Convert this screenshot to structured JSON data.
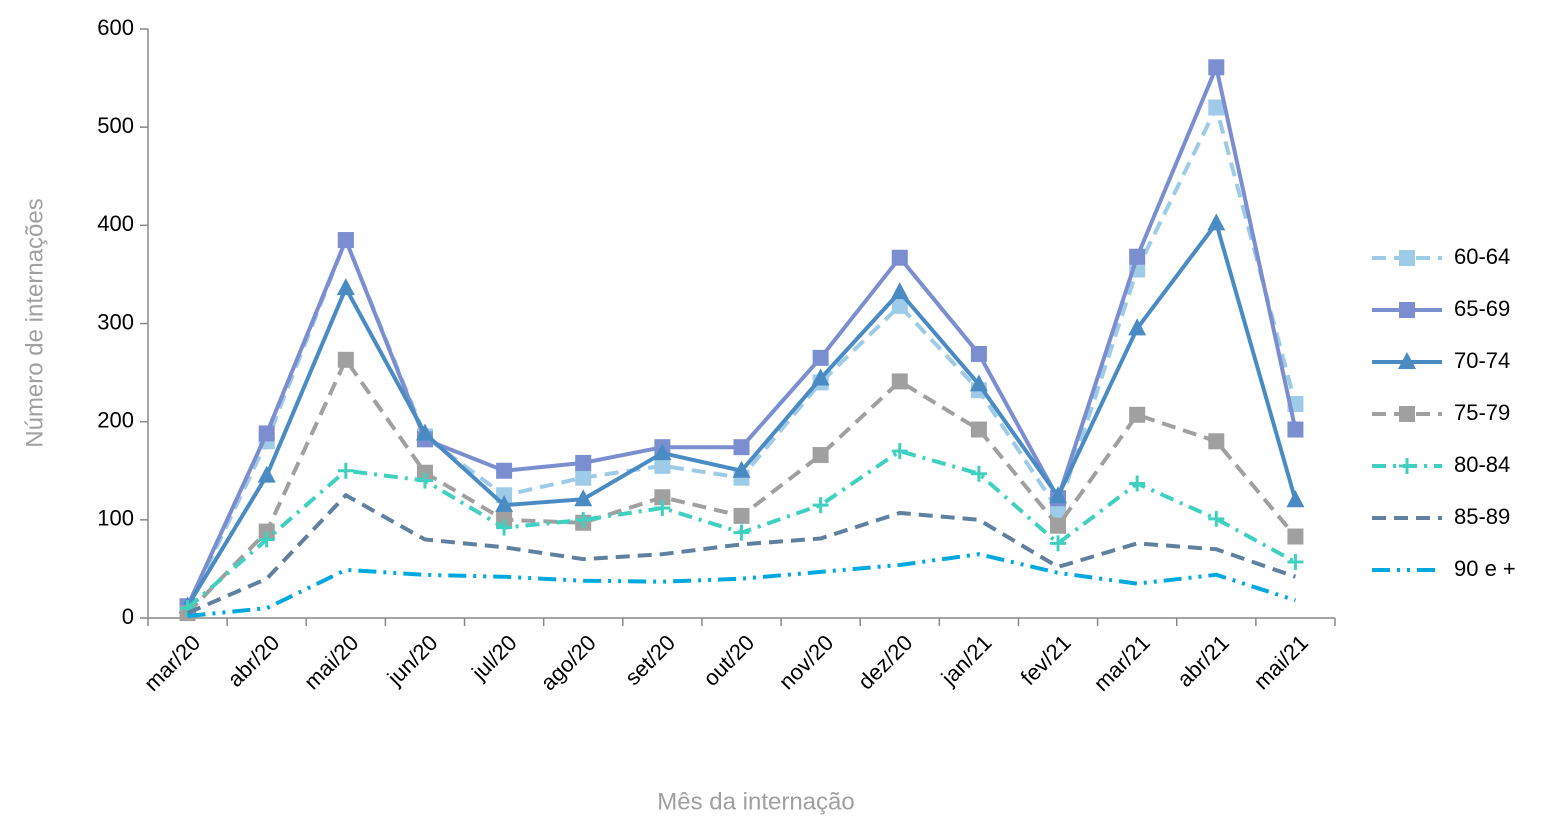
{
  "chart_data": {
    "type": "line",
    "x_label": "Mês da internação",
    "y_label": "Número de internações",
    "categories": [
      "mar/20",
      "abr/20",
      "mai/20",
      "jun/20",
      "jul/20",
      "ago/20",
      "set/20",
      "out/20",
      "nov/20",
      "dez/20",
      "jan/21",
      "fev/21",
      "mar/21",
      "abr/21",
      "mai/21"
    ],
    "ylim": [
      0,
      600
    ],
    "yticks": [
      0,
      100,
      200,
      300,
      400,
      500,
      600
    ],
    "grid": false,
    "legend": "right",
    "series": [
      {
        "name": "60-64",
        "color": "#9dcbe8",
        "dash": "dashed",
        "marker": "square",
        "values": [
          10,
          180,
          385,
          185,
          125,
          143,
          155,
          143,
          240,
          318,
          232,
          110,
          355,
          520,
          218
        ]
      },
      {
        "name": "65-69",
        "color": "#7b8fd0",
        "dash": "solid",
        "marker": "square",
        "values": [
          12,
          188,
          385,
          182,
          150,
          158,
          174,
          174,
          265,
          367,
          269,
          122,
          368,
          561,
          192
        ]
      },
      {
        "name": "70-74",
        "color": "#4a8bc4",
        "dash": "solid",
        "marker": "triangle",
        "values": [
          12,
          145,
          336,
          188,
          115,
          121,
          168,
          150,
          244,
          332,
          238,
          124,
          295,
          402,
          120
        ]
      },
      {
        "name": "75-79",
        "color": "#a0a0a0",
        "dash": "dashed",
        "marker": "square",
        "values": [
          5,
          88,
          263,
          148,
          100,
          97,
          123,
          104,
          166,
          241,
          192,
          94,
          207,
          180,
          83
        ]
      },
      {
        "name": "80-84",
        "color": "#40d0c0",
        "dash": "dashdot",
        "marker": "plus",
        "values": [
          10,
          80,
          150,
          140,
          92,
          100,
          112,
          87,
          115,
          170,
          147,
          76,
          137,
          101,
          57
        ]
      },
      {
        "name": "85-89",
        "color": "#6080a0",
        "dash": "dashed",
        "marker": "none",
        "values": [
          5,
          40,
          125,
          80,
          72,
          60,
          65,
          75,
          81,
          107,
          100,
          52,
          76,
          70,
          42
        ]
      },
      {
        "name": "90 e +",
        "color": "#00a8e0",
        "dash": "dashdotdot",
        "marker": "none",
        "values": [
          2,
          10,
          49,
          44,
          42,
          38,
          37,
          40,
          47,
          54,
          65,
          46,
          35,
          44,
          18
        ]
      }
    ]
  }
}
